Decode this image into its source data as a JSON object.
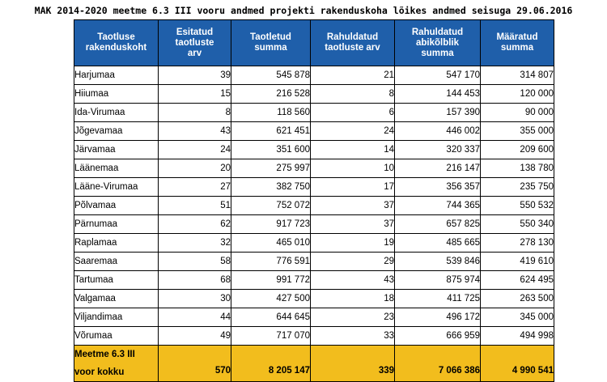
{
  "title": "MAK 2014-2020 meetme 6.3 III vooru andmed projekti rakenduskoha lõikes andmed seisuga 29.06.2016",
  "headers": [
    "Taotluse\nrakenduskoht",
    "Esitatud\ntaotluste\narv",
    "Taotletud\nsumma",
    "Rahuldatud\ntaotluste arv",
    "Rahuldatud\nabikõlblik\nsumma",
    "Määratud\nsumma"
  ],
  "rows": [
    [
      "Harjumaa",
      "39",
      "545 878",
      "21",
      "547 170",
      "314 807"
    ],
    [
      "Hiiumaa",
      "15",
      "216 528",
      "8",
      "144 453",
      "120 000"
    ],
    [
      "Ida-Virumaa",
      "8",
      "118 560",
      "6",
      "157 390",
      "90 000"
    ],
    [
      "Jõgevamaa",
      "43",
      "621 451",
      "24",
      "446 002",
      "355 000"
    ],
    [
      "Järvamaa",
      "24",
      "351 600",
      "14",
      "320 337",
      "209 600"
    ],
    [
      "Läänemaa",
      "20",
      "275 997",
      "10",
      "216 147",
      "138 780"
    ],
    [
      "Lääne-Virumaa",
      "27",
      "382 750",
      "17",
      "356 357",
      "235 750"
    ],
    [
      "Põlvamaa",
      "51",
      "752 072",
      "37",
      "744 365",
      "550 532"
    ],
    [
      "Pärnumaa",
      "62",
      "917 723",
      "37",
      "657 825",
      "550 340"
    ],
    [
      "Raplamaa",
      "32",
      "465 010",
      "19",
      "485 665",
      "278 130"
    ],
    [
      "Saaremaa",
      "58",
      "776 591",
      "29",
      "539 846",
      "419 610"
    ],
    [
      "Tartumaa",
      "68",
      "991 772",
      "43",
      "875 974",
      "624 495"
    ],
    [
      "Valgamaa",
      "30",
      "427 500",
      "18",
      "411 725",
      "263 500"
    ],
    [
      "Viljandimaa",
      "44",
      "644 645",
      "23",
      "496 172",
      "345 000"
    ],
    [
      "Võrumaa",
      "49",
      "717 070",
      "33",
      "666 959",
      "494 998"
    ]
  ],
  "total": [
    "Meetme 6.3 III\nvoor kokku",
    "570",
    "8 205 147",
    "339",
    "7 066 386",
    "4 990 541"
  ],
  "colors": {
    "header_bg": "#1f5faa",
    "header_text": "#ffffff",
    "total_bg": "#f2bd1d"
  }
}
